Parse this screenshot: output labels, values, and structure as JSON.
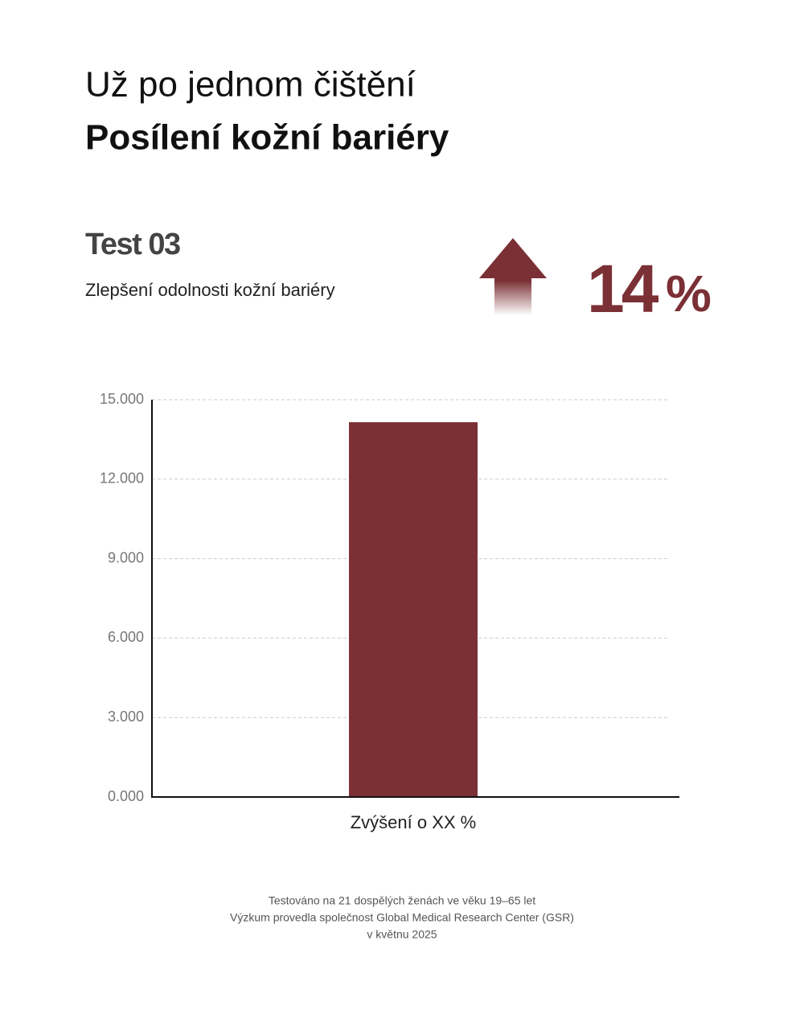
{
  "header": {
    "line1": "Už po jednom čištění",
    "line2": "Posílení kožní bariéry"
  },
  "test": {
    "label": "Test 03",
    "description": "Zlepšení odolnosti kožní bariéry"
  },
  "stat": {
    "value": "14",
    "unit": "%"
  },
  "chart_data": {
    "type": "bar",
    "categories": [
      "Zvýšení o XX %"
    ],
    "values": [
      14.15
    ],
    "color": "#7b3035",
    "ylim": [
      0,
      15
    ],
    "yticks": [
      {
        "value": 0,
        "label": "0.000"
      },
      {
        "value": 3,
        "label": "3.000"
      },
      {
        "value": 6,
        "label": "6.000"
      },
      {
        "value": 9,
        "label": "9.000"
      },
      {
        "value": 12,
        "label": "12.000"
      },
      {
        "value": 15,
        "label": "15.000"
      }
    ],
    "grid": true
  },
  "footer": {
    "lines": [
      "Testováno na 21 dospělých ženách ve věku 19–65 let",
      "Výzkum provedla společnost Global Medical Research Center (GSR)",
      "v květnu 2025"
    ]
  }
}
